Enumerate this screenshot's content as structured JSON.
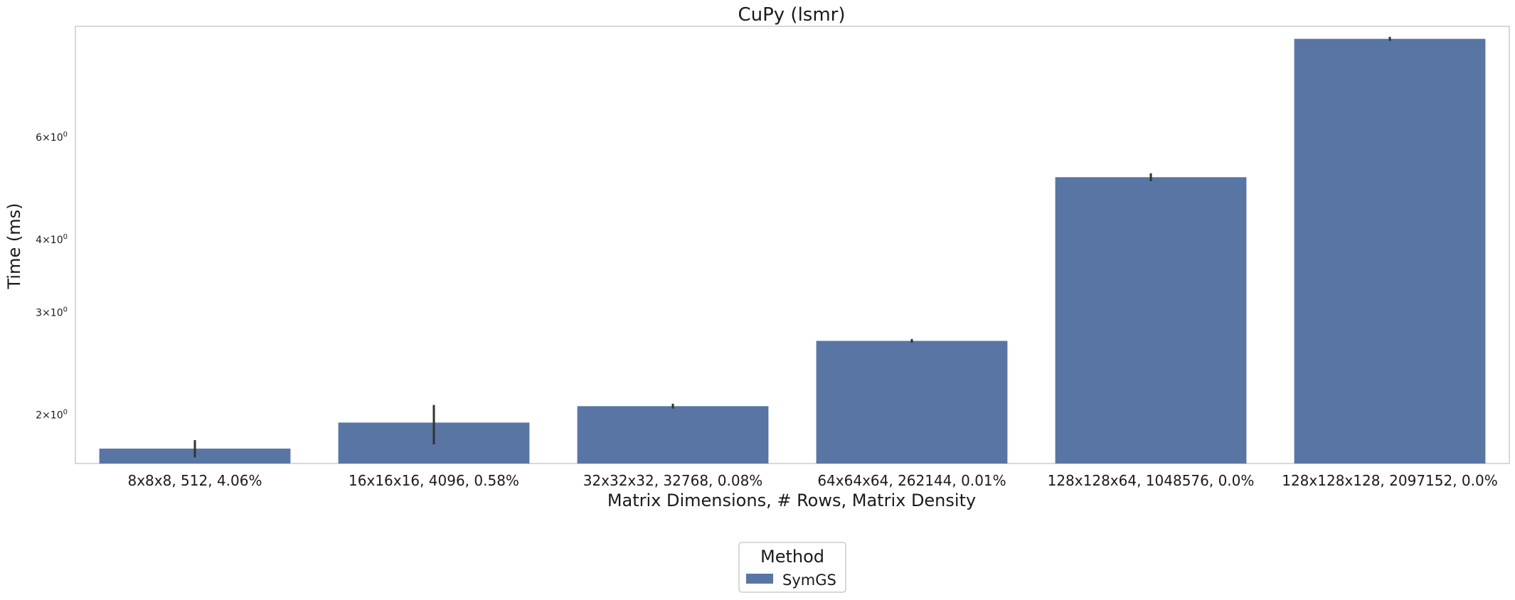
{
  "chart_data": {
    "type": "bar",
    "title": "CuPy (lsmr)",
    "xlabel": "Matrix Dimensions, # Rows, Matrix Density",
    "ylabel": "Time (ms)",
    "yscale": "log",
    "ylim": [
      1.65,
      9.3
    ],
    "grid": false,
    "categories": [
      "8x8x8, 512, 4.06%",
      "16x16x16, 4096, 0.58%",
      "32x32x32, 32768, 0.08%",
      "64x64x64, 262144, 0.01%",
      "128x128x64, 1048576, 0.0%",
      "128x128x128, 2097152, 0.0%"
    ],
    "yticks": [
      {
        "value": 2,
        "base": "2",
        "exp": "0"
      },
      {
        "value": 3,
        "base": "3",
        "exp": "0"
      },
      {
        "value": 4,
        "base": "4",
        "exp": "0"
      },
      {
        "value": 6,
        "base": "6",
        "exp": "0"
      }
    ],
    "series": [
      {
        "name": "SymGS",
        "color": "#5875a4",
        "values": [
          1.75,
          1.94,
          2.07,
          2.68,
          5.12,
          8.85
        ],
        "err_low": [
          1.69,
          1.78,
          2.05,
          2.66,
          5.04,
          8.78
        ],
        "err_high": [
          1.81,
          2.08,
          2.09,
          2.7,
          5.2,
          8.92
        ]
      }
    ],
    "legend": {
      "title": "Method",
      "position": "bottom-center"
    }
  }
}
